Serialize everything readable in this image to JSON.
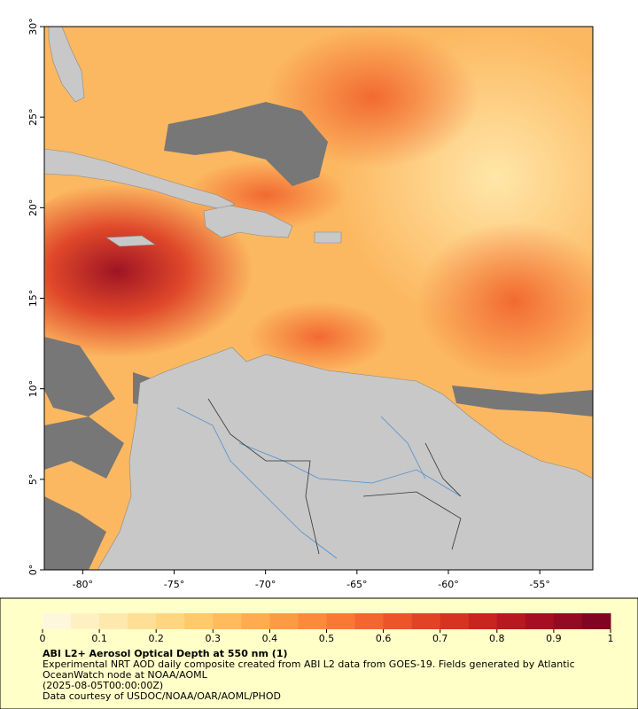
{
  "map": {
    "xlim": [
      -82.1,
      -52.1
    ],
    "ylim": [
      0,
      30
    ],
    "xticks": [
      {
        "value": -80,
        "label": "-80°"
      },
      {
        "value": -75,
        "label": "-75°"
      },
      {
        "value": -70,
        "label": "-70°"
      },
      {
        "value": -65,
        "label": "-65°"
      },
      {
        "value": -60,
        "label": "-60°"
      },
      {
        "value": -55,
        "label": "-55°"
      }
    ],
    "yticks": [
      {
        "value": 0,
        "label": "0°"
      },
      {
        "value": 5,
        "label": "5°"
      },
      {
        "value": 10,
        "label": "10°"
      },
      {
        "value": 15,
        "label": "15°"
      },
      {
        "value": 20,
        "label": "20°"
      },
      {
        "value": 25,
        "label": "25°"
      },
      {
        "value": 30,
        "label": "30°"
      }
    ]
  },
  "colorbar": {
    "lim": [
      0,
      1
    ],
    "ticks": [
      0,
      0.1,
      0.2,
      0.3,
      0.4,
      0.5,
      0.6,
      0.7,
      0.8,
      0.9,
      1
    ],
    "colors": [
      "#fff7dc",
      "#fff0c4",
      "#ffe8ac",
      "#ffdf95",
      "#ffd580",
      "#ffc96c",
      "#ffbb5c",
      "#feac4f",
      "#fd9b45",
      "#fc8a3d",
      "#f97836",
      "#f3662f",
      "#ec542a",
      "#e34325",
      "#d73321",
      "#c9241f",
      "#b8181f",
      "#a50f21",
      "#930a22",
      "#800522"
    ]
  },
  "caption": {
    "title": "ABI L2+ Aerosol Optical Depth at 550 nm (1)",
    "lines": [
      "Experimental NRT AOD daily composite created from ABI L2 data from GOES-19. Fields generated by Atlantic",
      "OceanWatch node at NOAA/AOML",
      "(2025-08-05T00:00:00Z)",
      "Data courtesy of USDOC/NOAA/OAR/AOML/PHOD"
    ]
  }
}
